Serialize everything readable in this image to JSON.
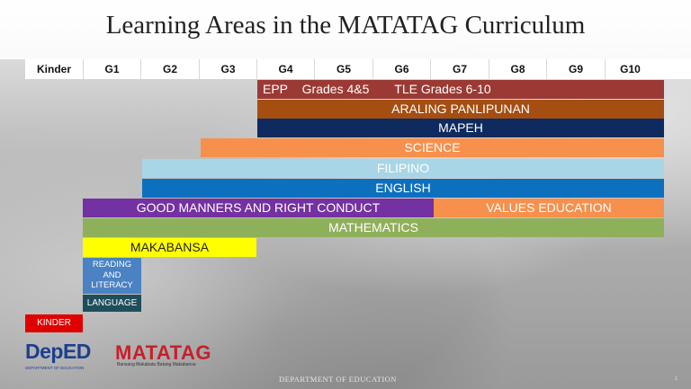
{
  "title": "Learning Areas in the MATATAG Curriculum",
  "grades": [
    "Kinder",
    "G1",
    "G2",
    "G3",
    "G4",
    "G5",
    "G6",
    "G7",
    "G8",
    "G9",
    "G10"
  ],
  "bars": {
    "epp": "EPP",
    "epp_grades": "Grades 4&5",
    "tle": "TLE Grades 6-10",
    "araling": "ARALING PANLIPUNAN",
    "mapeh": "MAPEH",
    "science": "SCIENCE",
    "filipino": "FILIPINO",
    "english": "ENGLISH",
    "gmrc": "GOOD MANNERS AND RIGHT CONDUCT",
    "values": "VALUES EDUCATION",
    "math": "MATHEMATICS",
    "makabansa": "MAKABANSA",
    "reading": "READING AND LITERACY",
    "language": "LANGUAGE",
    "kinder": "KINDER"
  },
  "colors": {
    "epp_tle": "#9b3a34",
    "araling": "#a44e12",
    "mapeh": "#0e2a5f",
    "science": "#f6904c",
    "filipino": "#a8d6e6",
    "english": "#0d70bf",
    "gmrc": "#7431a1",
    "values": "#f6904c",
    "math": "#8fb05a",
    "makabansa": "#ffff00",
    "reading": "#4b82c3",
    "language": "#1f4e5b",
    "kinder": "#e00000"
  },
  "logos": {
    "deped_text": "DepED",
    "deped_sub": "DEPARTMENT OF EDUCATION",
    "matatag": "MATATAG",
    "matatag_sub": "Bansang Makabata  Batang Makabansa"
  },
  "footer": "DEPARTMENT OF EDUCATION",
  "page_number": "1"
}
